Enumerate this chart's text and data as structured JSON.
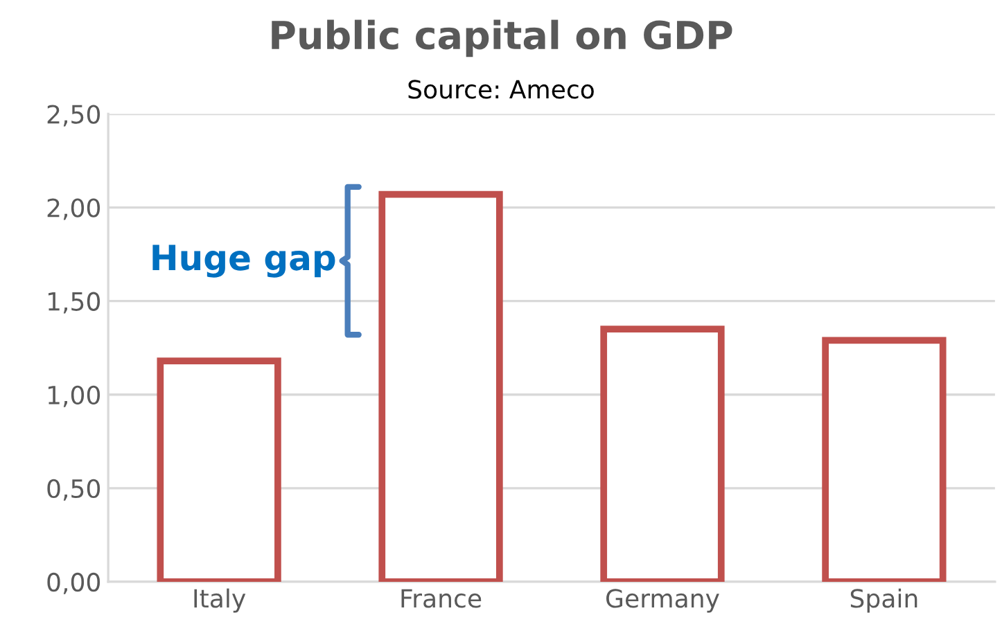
{
  "chart_data": {
    "type": "bar",
    "title": "Public capital on GDP",
    "subtitle": "Source: Ameco",
    "categories": [
      "Italy",
      "France",
      "Germany",
      "Spain"
    ],
    "series": [
      {
        "color": "#c0504d",
        "values": [
          1.18,
          2.07,
          1.35,
          1.29
        ]
      }
    ],
    "ylim": [
      0,
      2.5
    ],
    "yticks": [
      {
        "value": 0,
        "label": "0,00"
      },
      {
        "value": 0.5,
        "label": "0,50"
      },
      {
        "value": 1,
        "label": "1,00"
      },
      {
        "value": 1.5,
        "label": "1,50"
      },
      {
        "value": 2,
        "label": "2,00"
      },
      {
        "value": 2.5,
        "label": "2,50"
      }
    ],
    "grid": "y",
    "legend": false,
    "annotations": [
      "Huge gap"
    ]
  }
}
